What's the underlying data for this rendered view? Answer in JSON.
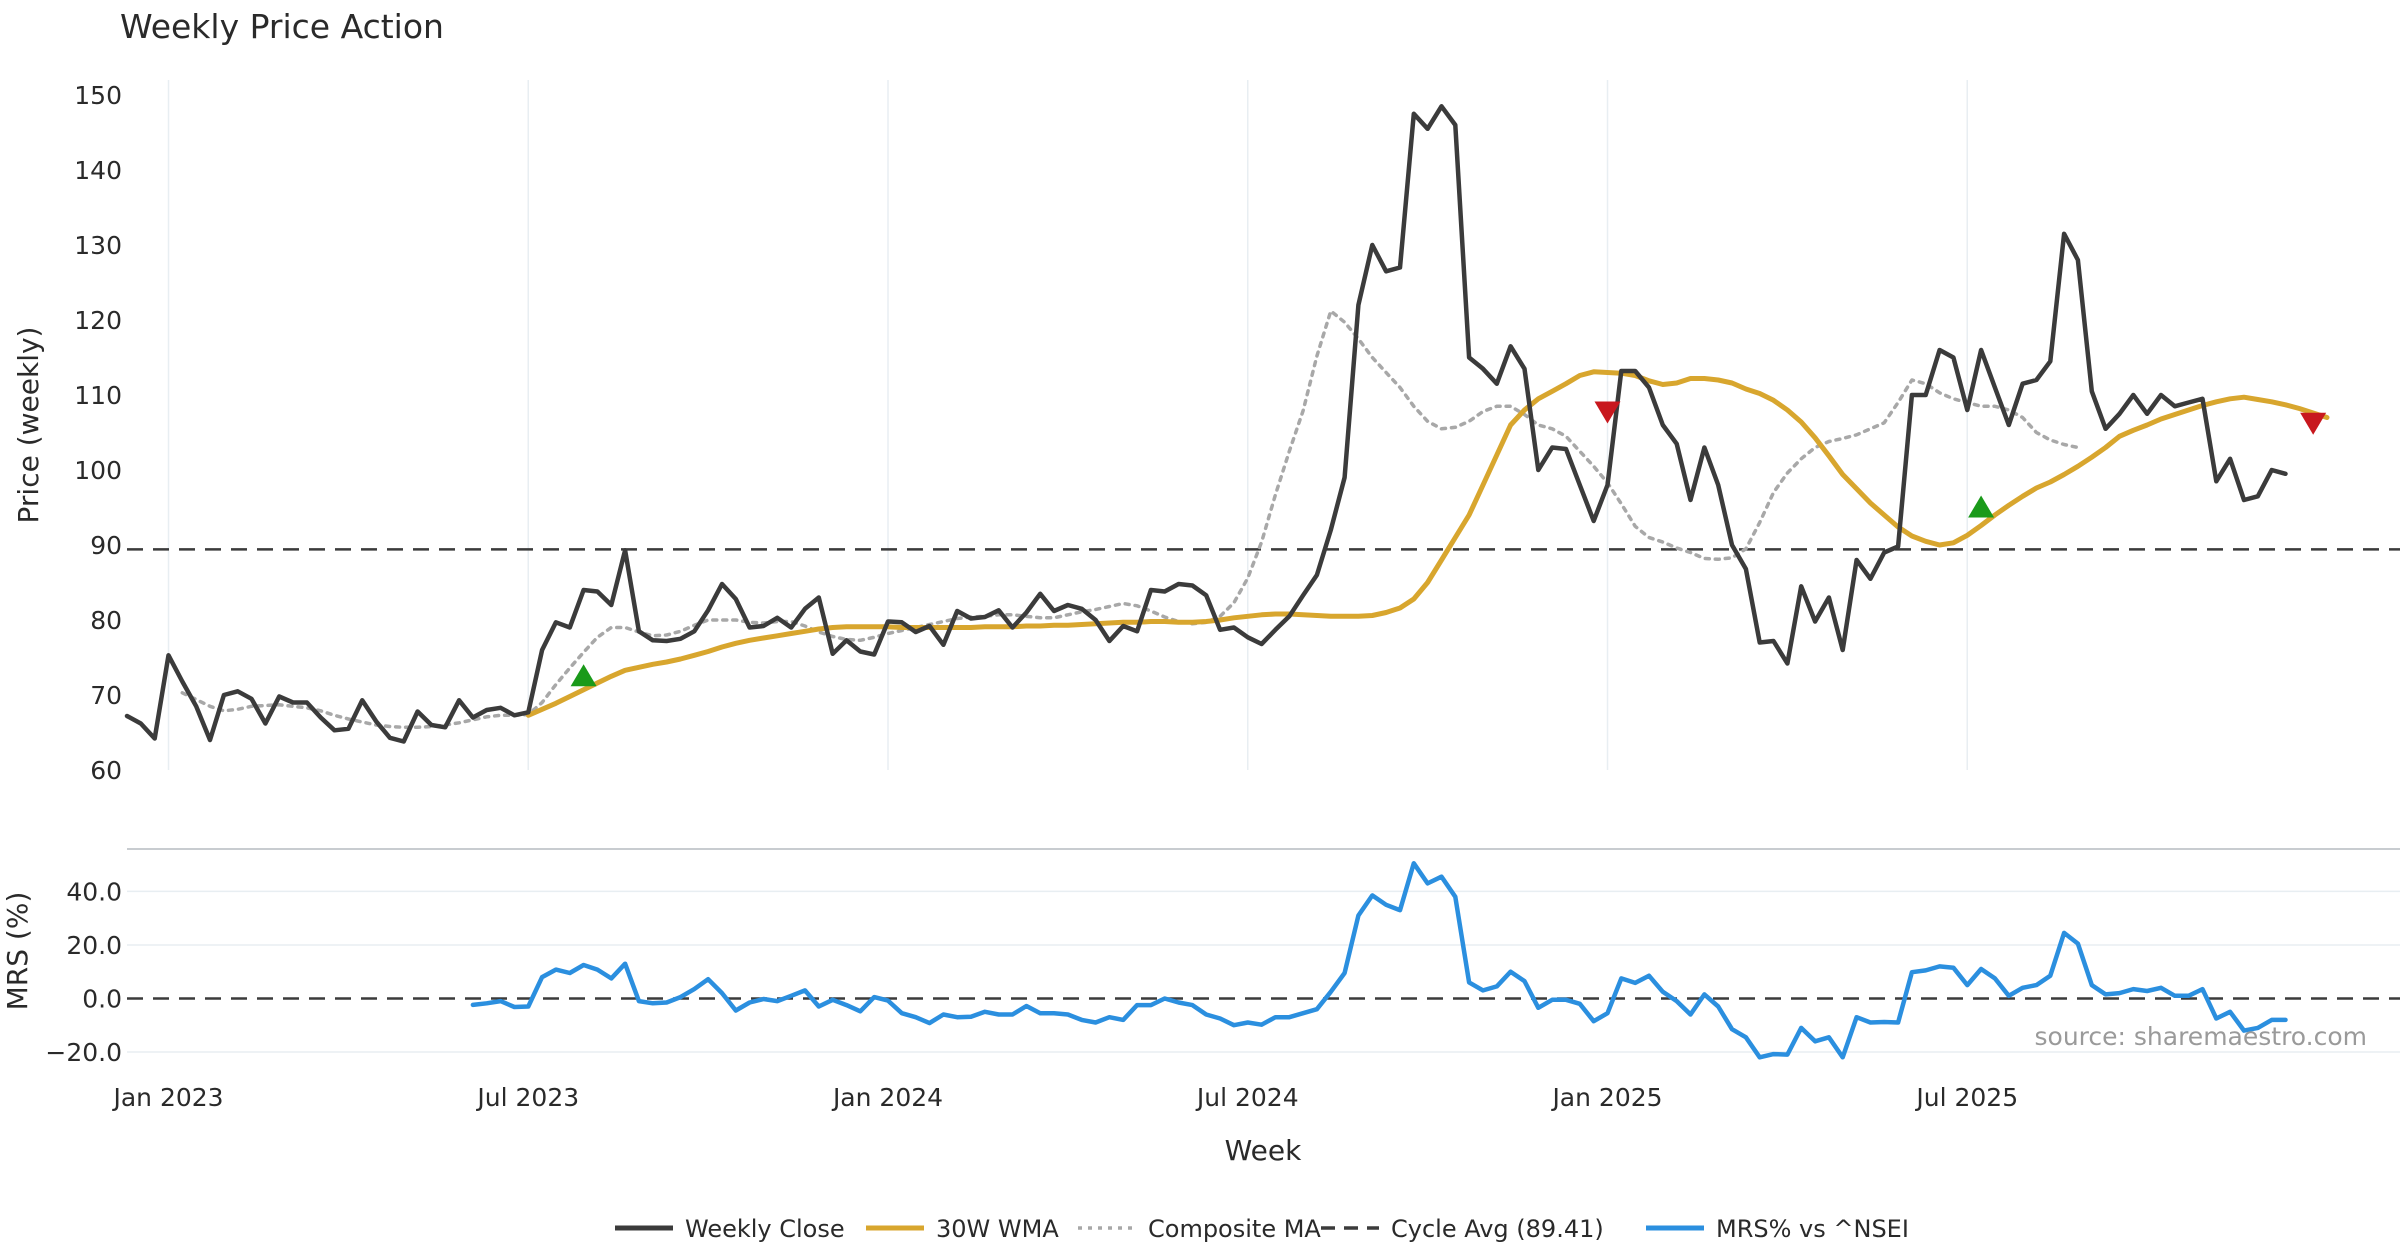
{
  "chart_data": {
    "type": "line",
    "title": "Weekly Price Action",
    "source": "source: sharemaestro.com",
    "xlabel": "Week",
    "x_ticks": [
      "Jan 2023",
      "Jul 2023",
      "Jan 2024",
      "Jul 2024",
      "Jan 2025",
      "Jul 2025"
    ],
    "x_tick_index": [
      3,
      29,
      55,
      81,
      107,
      133
    ],
    "price_panel": {
      "ylabel": "Price (weekly)",
      "ylim": [
        60,
        152
      ],
      "y_ticks": [
        "60",
        "70",
        "80",
        "90",
        "100",
        "110",
        "120",
        "130",
        "140",
        "150"
      ],
      "y_tick_values": [
        60,
        70,
        80,
        90,
        100,
        110,
        120,
        130,
        140,
        150
      ],
      "cycle_avg": 89.41,
      "series": [
        {
          "name": "Weekly Close",
          "color": "#3b3b3b",
          "start_index": 0,
          "values": [
            67.2,
            66.2,
            64.2,
            75.3,
            71.8,
            68.5,
            64.0,
            70.0,
            70.5,
            69.5,
            66.2,
            69.8,
            69.0,
            69.0,
            67.0,
            65.3,
            65.5,
            69.3,
            66.5,
            64.3,
            63.8,
            67.8,
            66.0,
            65.7,
            69.3,
            67.0,
            68.0,
            68.3,
            67.3,
            67.7,
            76.0,
            79.7,
            79.0,
            84.0,
            83.8,
            82.0,
            89.3,
            78.5,
            77.3,
            77.2,
            77.5,
            78.5,
            81.3,
            84.8,
            82.8,
            79.0,
            79.2,
            80.3,
            79.0,
            81.5,
            83.0,
            75.5,
            77.3,
            75.8,
            75.4,
            79.8,
            79.7,
            78.4,
            79.2,
            76.7,
            81.2,
            80.2,
            80.4,
            81.3,
            79.0,
            81.0,
            83.5,
            81.2,
            82.0,
            81.5,
            80.0,
            77.2,
            79.2,
            78.5,
            84.0,
            83.8,
            84.8,
            84.6,
            83.3,
            78.7,
            79.0,
            77.7,
            76.8,
            78.7,
            80.5,
            83.3,
            86.0,
            92.0,
            99.0,
            122.0,
            130.0,
            126.5,
            127.0,
            147.5,
            145.5,
            148.5,
            146.0,
            115.0,
            113.5,
            111.5,
            116.5,
            113.5,
            100.0,
            103.0,
            102.8,
            98.0,
            93.2,
            98.0,
            113.2,
            113.2,
            111.0,
            106.0,
            103.5,
            96.0,
            103.0,
            98.0,
            90.0,
            86.8,
            77.0,
            77.2,
            74.2,
            84.5,
            79.8,
            83.0,
            76.0,
            88.0,
            85.5,
            89.0,
            89.8,
            110.0,
            110.0,
            116.0,
            115.0,
            108.0,
            116.0,
            111.0,
            106.0,
            111.5,
            112.0,
            114.5,
            131.5,
            128.0,
            110.5,
            105.5,
            107.5,
            110.0,
            107.5,
            110.0,
            108.5,
            109.0,
            109.5,
            98.5,
            101.5,
            96.0,
            96.5,
            100.0,
            99.5
          ]
        },
        {
          "name": "30W WMA",
          "color": "#d8a62e",
          "start_index": 29,
          "values": [
            67.3,
            68.1,
            68.9,
            69.8,
            70.7,
            71.6,
            72.5,
            73.3,
            73.7,
            74.1,
            74.4,
            74.8,
            75.3,
            75.8,
            76.4,
            76.9,
            77.3,
            77.6,
            77.9,
            78.2,
            78.5,
            78.8,
            79.0,
            79.1,
            79.1,
            79.1,
            79.1,
            79.0,
            79.0,
            79.0,
            79.0,
            79.0,
            79.0,
            79.1,
            79.1,
            79.1,
            79.2,
            79.2,
            79.3,
            79.3,
            79.4,
            79.5,
            79.6,
            79.7,
            79.7,
            79.8,
            79.8,
            79.7,
            79.7,
            79.8,
            80.0,
            80.3,
            80.5,
            80.7,
            80.8,
            80.8,
            80.7,
            80.6,
            80.5,
            80.5,
            80.5,
            80.6,
            81.0,
            81.6,
            82.8,
            85.0,
            88.0,
            91.0,
            94.0,
            98.0,
            102.0,
            106.0,
            108.0,
            109.5,
            110.5,
            111.5,
            112.6,
            113.1,
            113.0,
            112.9,
            112.6,
            111.9,
            111.4,
            111.6,
            112.2,
            112.2,
            112.0,
            111.6,
            110.8,
            110.2,
            109.3,
            108.0,
            106.4,
            104.3,
            101.9,
            99.4,
            97.5,
            95.6,
            94.0,
            92.4,
            91.2,
            90.5,
            90.0,
            90.3,
            91.3,
            92.6,
            94.0,
            95.3,
            96.5,
            97.6,
            98.4,
            99.4,
            100.5,
            101.7,
            103.0,
            104.5,
            105.3,
            106.0,
            106.8,
            107.4,
            108.0,
            108.6,
            109.1,
            109.5,
            109.7,
            109.4,
            109.1,
            108.7,
            108.2,
            107.6,
            107.0
          ]
        },
        {
          "name": "Composite MA",
          "color": "#a8a8a8",
          "start_index": 4,
          "values": [
            70.3,
            69.4,
            68.5,
            67.9,
            68.1,
            68.5,
            68.6,
            68.7,
            68.5,
            68.3,
            67.9,
            67.3,
            66.8,
            66.4,
            66.0,
            65.8,
            65.7,
            65.7,
            65.8,
            66.0,
            66.3,
            66.7,
            67.1,
            67.3,
            67.3,
            67.4,
            69.0,
            71.4,
            73.6,
            75.7,
            77.7,
            79.0,
            79.0,
            78.4,
            77.9,
            78.0,
            78.5,
            79.3,
            80.0,
            80.0,
            80.0,
            79.7,
            79.6,
            79.8,
            79.8,
            79.2,
            78.4,
            77.8,
            77.4,
            77.3,
            77.7,
            78.2,
            78.6,
            79.0,
            79.4,
            79.8,
            80.2,
            80.4,
            80.5,
            80.7,
            80.7,
            80.5,
            80.3,
            80.3,
            80.7,
            81.1,
            81.4,
            81.8,
            82.2,
            81.9,
            81.2,
            80.4,
            79.8,
            79.5,
            79.7,
            80.5,
            82.3,
            85.6,
            90.4,
            96.7,
            102.5,
            107.9,
            115.2,
            121.2,
            119.7,
            117.5,
            115.0,
            113.0,
            111.0,
            108.5,
            106.5,
            105.5,
            105.7,
            106.5,
            107.8,
            108.5,
            108.5,
            107.4,
            106.0,
            105.5,
            104.5,
            102.5,
            100.5,
            98.3,
            95.5,
            92.5,
            91.0,
            90.4,
            89.6,
            89.0,
            88.2,
            88.1,
            88.3,
            89.5,
            93.0,
            97.0,
            99.6,
            101.5,
            103.0,
            103.8,
            104.2,
            104.7,
            105.5,
            106.3,
            109.0,
            112.0,
            111.5,
            110.3,
            109.5,
            109.0,
            108.5,
            108.5,
            108.0,
            107.0,
            105.0,
            104.0,
            103.4,
            103.0
          ]
        }
      ],
      "buy_signals": [
        {
          "index": 33,
          "value": 72.5
        },
        {
          "index": 134,
          "value": 95.0
        }
      ],
      "sell_signals": [
        {
          "index": 107,
          "value": 107.8
        },
        {
          "index": 158,
          "value": 106.3
        }
      ]
    },
    "mrs_panel": {
      "ylabel": "MRS (%)",
      "ylim": [
        -23,
        51
      ],
      "y_ticks": [
        "−20.0",
        "0.0",
        "20.0",
        "40.0"
      ],
      "y_tick_values": [
        -20,
        0,
        20,
        40
      ],
      "zero_line": 0,
      "series": [
        {
          "name": "MRS% vs ^NSEI",
          "color": "#2b8fdf",
          "start_index": 25,
          "values": [
            -2.4,
            -1.8,
            -1.0,
            -3.2,
            -3.0,
            8.0,
            10.8,
            9.5,
            12.5,
            10.8,
            7.5,
            13.0,
            -1.0,
            -1.8,
            -1.5,
            0.5,
            3.5,
            7.2,
            2.0,
            -4.5,
            -1.5,
            -0.2,
            -1.0,
            1.0,
            3.0,
            -3.0,
            -0.5,
            -2.5,
            -4.8,
            0.5,
            -0.8,
            -5.5,
            -7.0,
            -9.2,
            -6.0,
            -7.0,
            -6.8,
            -5.0,
            -6.0,
            -6.0,
            -2.8,
            -5.5,
            -5.5,
            -6.0,
            -8.0,
            -9.0,
            -7.0,
            -8.0,
            -2.5,
            -2.5,
            0.0,
            -1.5,
            -2.5,
            -6.0,
            -7.5,
            -10.0,
            -9.0,
            -9.8,
            -7.0,
            -7.0,
            -5.5,
            -4.0,
            2.5,
            9.5,
            31.0,
            38.5,
            35.0,
            33.0,
            50.5,
            43.0,
            45.5,
            38.0,
            6.0,
            3.0,
            4.5,
            10.0,
            6.5,
            -3.5,
            -0.5,
            -0.5,
            -2.0,
            -8.5,
            -5.5,
            7.5,
            5.8,
            8.5,
            2.5,
            -1.0,
            -6.0,
            1.5,
            -3.0,
            -11.5,
            -14.5,
            -22.0,
            -20.8,
            -21.0,
            -11.0,
            -16.0,
            -14.5,
            -22.0,
            -7.0,
            -9.0,
            -8.8,
            -9.0,
            9.8,
            10.5,
            12.0,
            11.5,
            5.0,
            11.0,
            7.5,
            1.0,
            4.0,
            5.0,
            8.5,
            24.5,
            20.5,
            5.0,
            1.5,
            2.0,
            3.5,
            2.8,
            4.0,
            1.0,
            1.0,
            3.5,
            -7.5,
            -5.0,
            -12.0,
            -11.0,
            -8.0,
            -8.0
          ]
        }
      ]
    },
    "legend": {
      "position": "bottom-center",
      "items": [
        {
          "label": "Weekly Close",
          "color": "#3b3b3b",
          "style": "solid"
        },
        {
          "label": "30W WMA",
          "color": "#d8a62e",
          "style": "solid"
        },
        {
          "label": "Composite MA",
          "color": "#a8a8a8",
          "style": "dotted"
        },
        {
          "label": "Cycle Avg (89.41)",
          "color": "#3b3b3b",
          "style": "dashed"
        },
        {
          "label": "MRS% vs ^NSEI",
          "color": "#2b8fdf",
          "style": "solid"
        }
      ]
    },
    "colors": {
      "buy": "#1a9a1a",
      "sell": "#c8181e",
      "grid": "#e8eef2",
      "cycle_line": "#3b3b3b",
      "zero_line": "#3b3b3b",
      "separator": "#c8ccd0"
    }
  }
}
